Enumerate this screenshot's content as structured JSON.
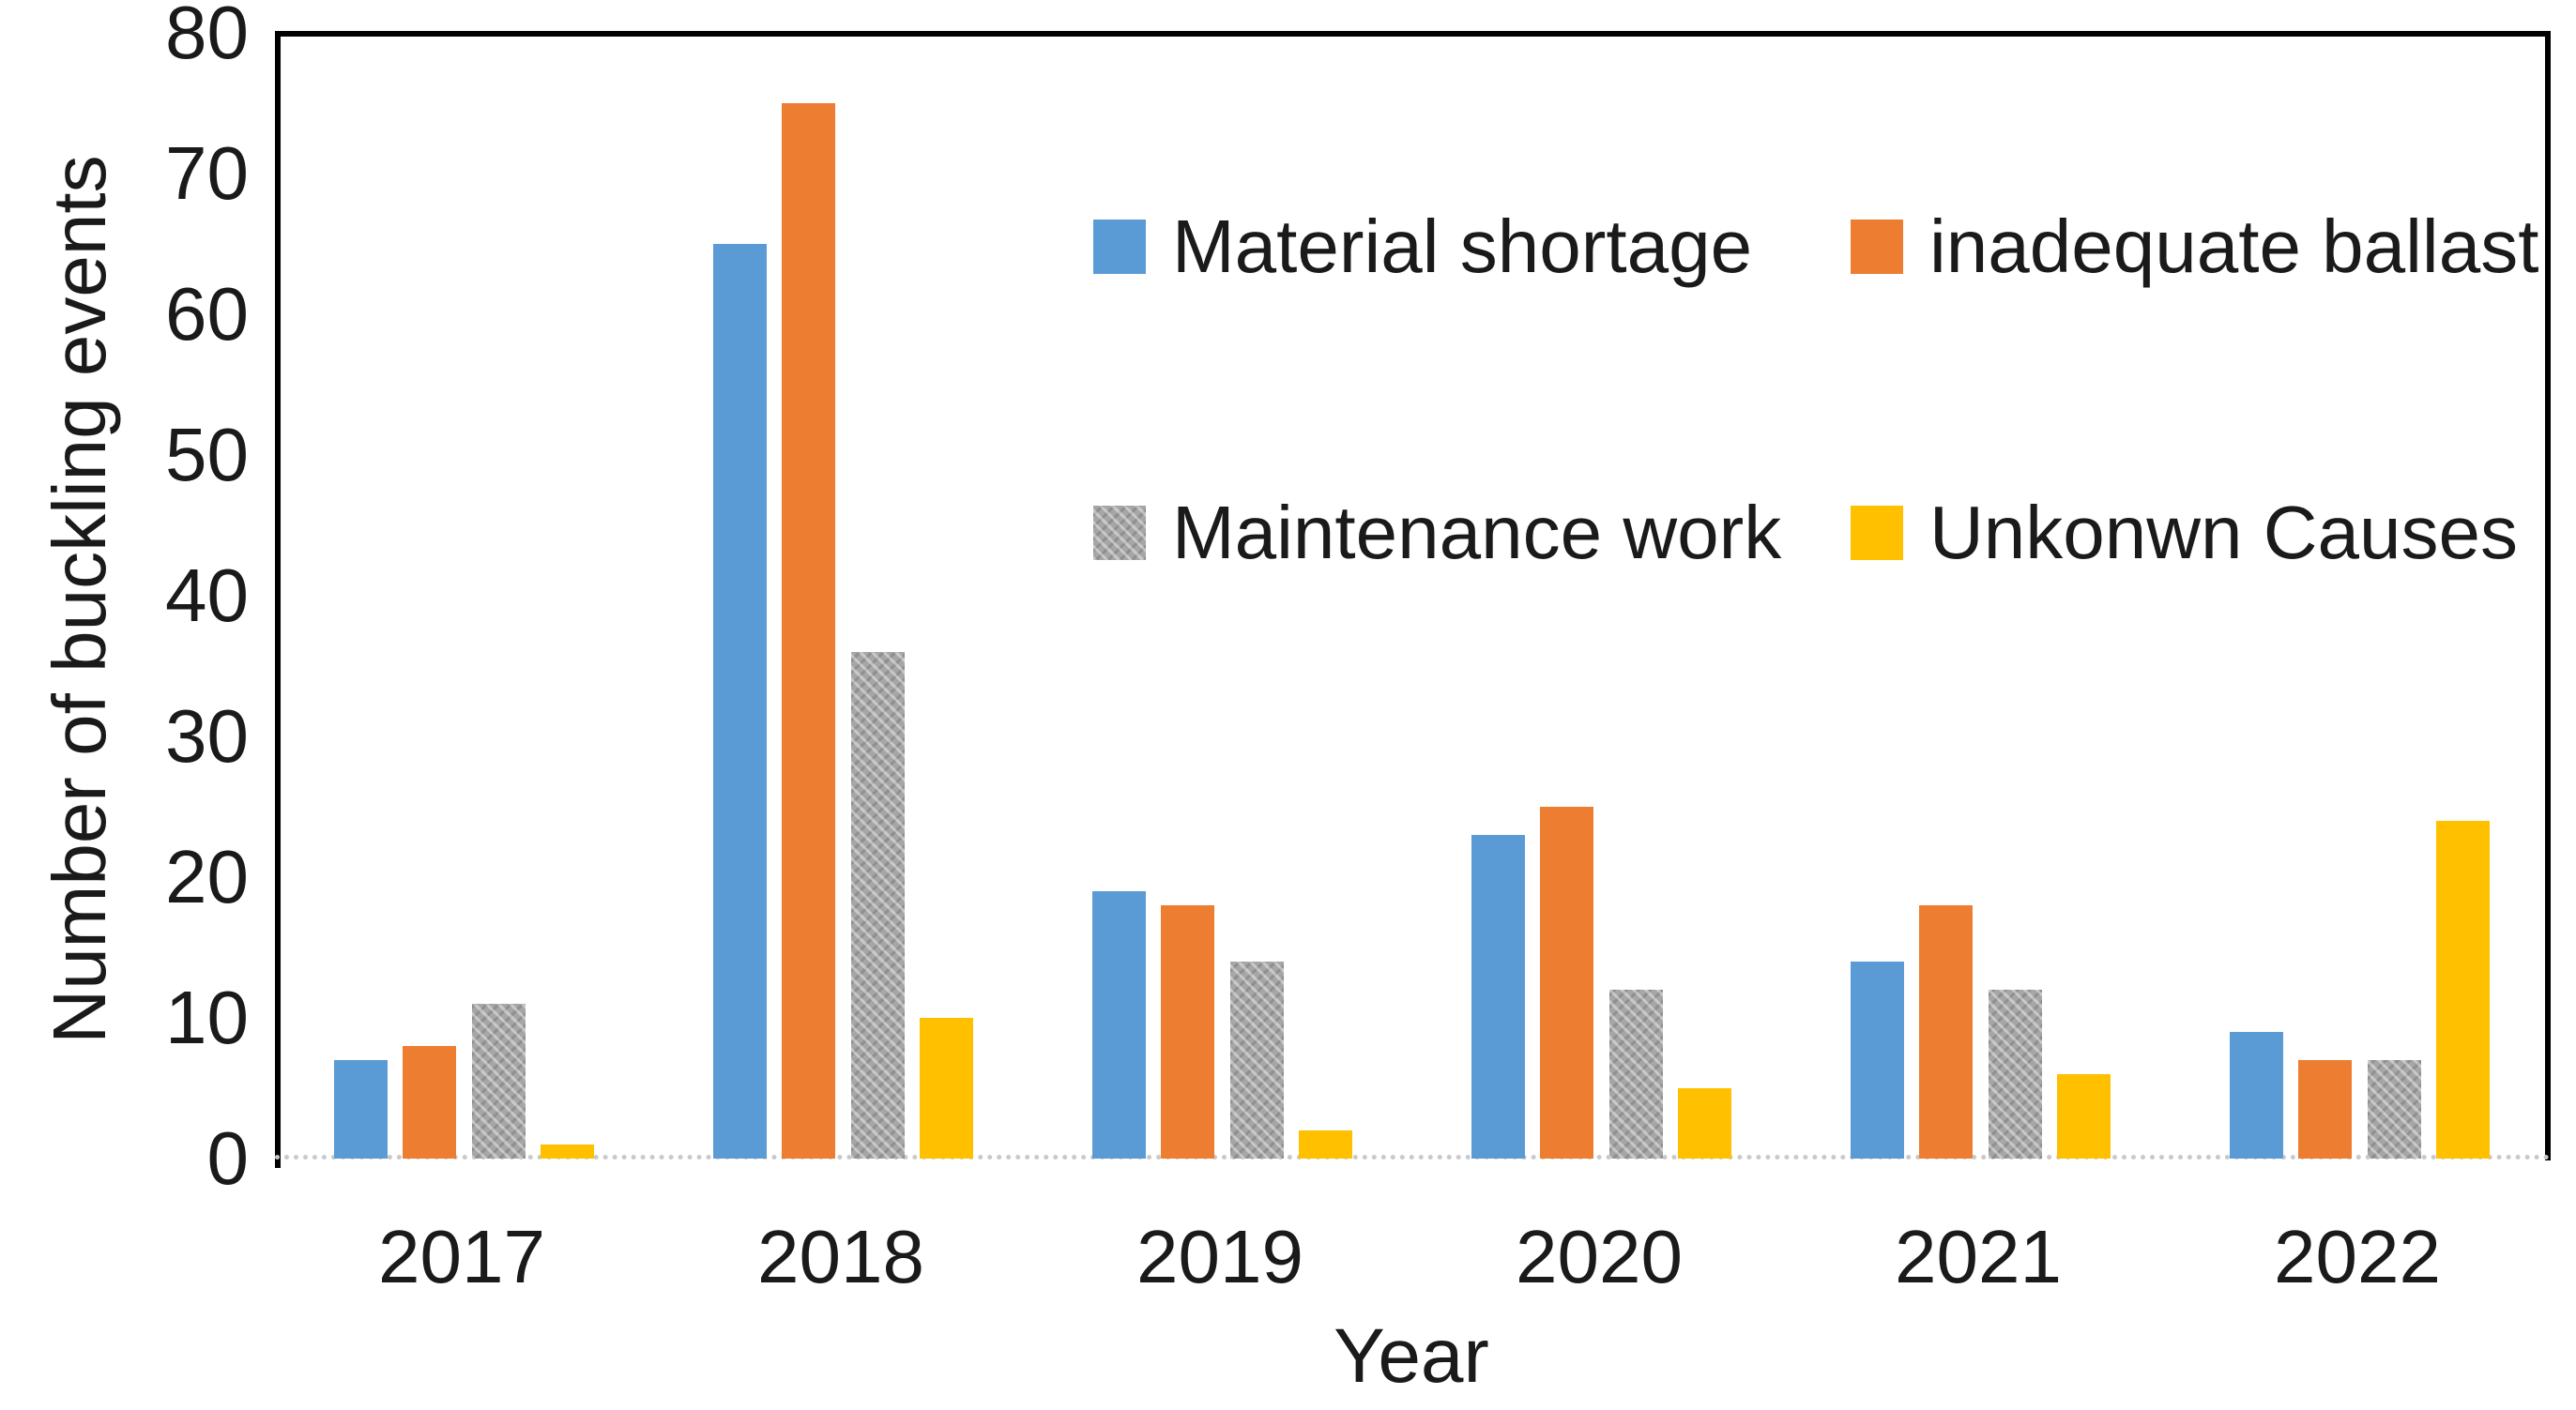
{
  "chart_data": {
    "type": "bar",
    "title": "",
    "categories": [
      "2017",
      "2018",
      "2019",
      "2020",
      "2021",
      "2022"
    ],
    "series": [
      {
        "name": "Material shortage",
        "color": "#5B9BD5",
        "pattern": "solid",
        "values": [
          7,
          65,
          19,
          23,
          14,
          9
        ]
      },
      {
        "name": "inadequate ballast",
        "color": "#ED7D31",
        "pattern": "solid",
        "values": [
          8,
          75,
          18,
          25,
          18,
          7
        ]
      },
      {
        "name": "Maintenance work",
        "color": "#A6A6A6",
        "pattern": "textured",
        "values": [
          11,
          36,
          14,
          12,
          12,
          7
        ]
      },
      {
        "name": "Unkonwn Causes",
        "color": "#FFC000",
        "pattern": "solid",
        "values": [
          1,
          10,
          2,
          5,
          6,
          24
        ]
      }
    ],
    "xlabel": "Year",
    "ylabel": "Number of buckling events",
    "ylim": [
      0,
      80
    ],
    "yticks": [
      0,
      10,
      20,
      30,
      40,
      50,
      60,
      70,
      80
    ],
    "grid": false,
    "legend_position": "inside-top",
    "legend_rows": [
      [
        "Material shortage",
        "inadequate ballast"
      ],
      [
        "Maintenance work",
        "Unkonwn Causes"
      ]
    ]
  },
  "axis_colors": {
    "frame": "#000000",
    "baseline_dotted": "#c9c9c9",
    "text": "#1a1a1a"
  }
}
